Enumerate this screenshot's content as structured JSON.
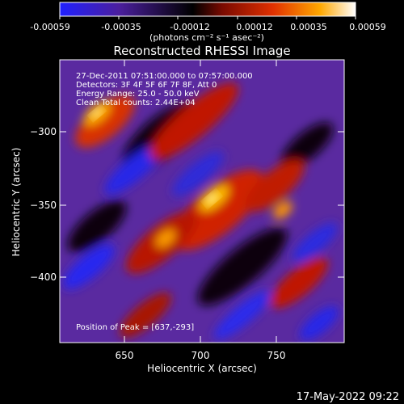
{
  "colorbar": {
    "ticks": [
      "-0.00059",
      "-0.00035",
      "-0.00012",
      "0.00012",
      "0.00035",
      "0.00059"
    ],
    "unit_label": "(photons cm⁻² s⁻¹ asec⁻²)",
    "colors": [
      "#2020ff",
      "#4b1f9e",
      "#000000",
      "#7a0a00",
      "#e03000",
      "#ffa800",
      "#ffffff"
    ]
  },
  "plot": {
    "title": "Reconstructed RHESSI Image",
    "info_lines": [
      "27-Dec-2011 07:51:00.000 to 07:57:00.000",
      "Detectors: 3F 4F 5F 6F 7F 8F, Att 0",
      "Energy Range: 25.0 - 50.0 keV",
      "Clean     Total counts: 2.44E+04"
    ],
    "peak_label": "Position of Peak = [637,-293]",
    "xlabel": "Heliocentric X (arcsec)",
    "ylabel": "Heliocentric Y (arcsec)",
    "xticks": [
      "650",
      "700",
      "750"
    ],
    "yticks": [
      "−300",
      "−350",
      "−400"
    ]
  },
  "footer": {
    "timestamp": "17-May-2022 09:22"
  }
}
